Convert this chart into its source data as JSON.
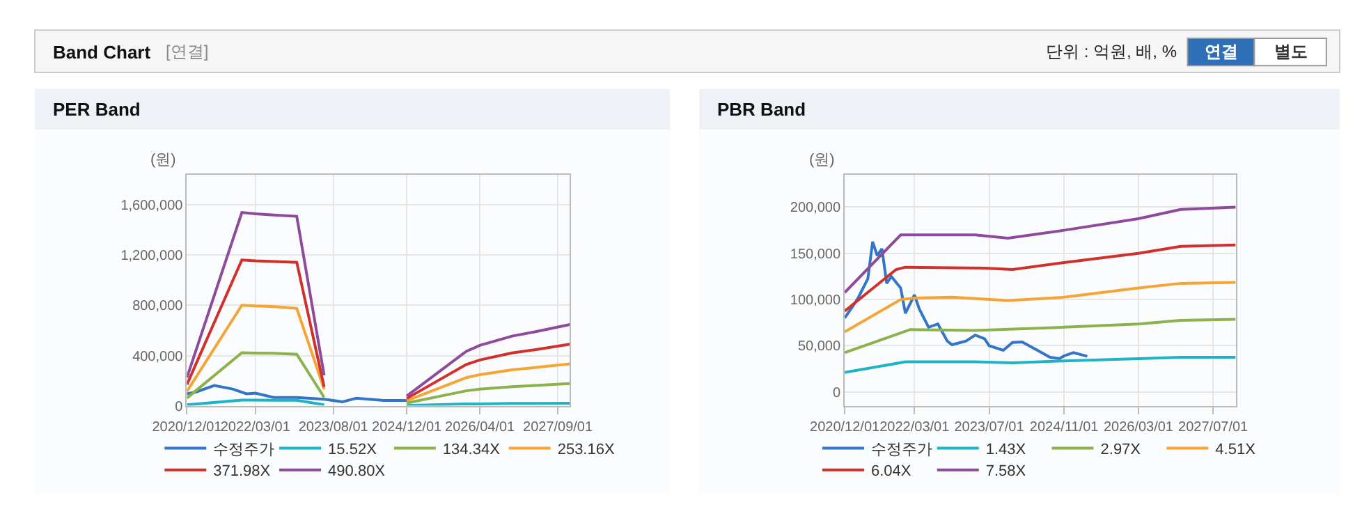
{
  "chart_data": [
    {
      "type": "line",
      "title": "PER Band",
      "ylabel": "(원)",
      "annotations": [
        "Band Chart",
        "[연결]",
        "단위 : 억원, 배, %",
        "연결",
        "별도"
      ],
      "xlim": [
        "2020-12-01",
        "2027-11-20"
      ],
      "xticks": [
        {
          "value": "2020-12-01",
          "label": "2020/12/01"
        },
        {
          "value": "2022-03-01",
          "label": "2022/03/01"
        },
        {
          "value": "2023-08-01",
          "label": "2023/08/01"
        },
        {
          "value": "2024-12-01",
          "label": "2024/12/01"
        },
        {
          "value": "2026-04-01",
          "label": "2026/04/01"
        },
        {
          "value": "2027-09-01",
          "label": "2027/09/01"
        }
      ],
      "ylim": [
        0,
        1840000
      ],
      "yticks": [
        0,
        {
          "value": 400000,
          "label": "400,000"
        },
        {
          "value": 800000,
          "label": "800,000"
        },
        {
          "value": 1200000,
          "label": "1,200,000"
        },
        {
          "value": 1600000,
          "label": "1,600,000"
        }
      ],
      "grid": true,
      "legend": "bottom",
      "marker": "none",
      "line_style": "solid",
      "series": [
        {
          "name": "수정주가",
          "color": "#3375c8",
          "x": [
            "2020-12-01",
            "2021-02-01",
            "2021-06-01",
            "2021-10-01",
            "2022-01-01",
            "2022-03-01",
            "2022-07-01",
            "2022-12-01",
            "2023-06-01",
            "2023-10-01",
            "2024-01-01",
            "2024-07-01",
            "2024-12-01"
          ],
          "values": [
            95000,
            110000,
            161000,
            133000,
            95000,
            100000,
            66000,
            66000,
            52000,
            31000,
            60000,
            42000,
            42000
          ]
        },
        {
          "name": "15.52X",
          "color": "#1fb3c8",
          "x": [
            "2020-12-01",
            "2021-12-01",
            "2022-03-01",
            "2022-07-01",
            "2022-12-01",
            "2023-06-01",
            "2024-01-01",
            "2024-12-01",
            "2026-01-01",
            "2026-04-01",
            "2026-11-01",
            "2027-04-01",
            "2027-11-20"
          ],
          "values": [
            7000,
            45000,
            45000,
            44000,
            44000,
            8000,
            null,
            2000,
            14000,
            15000,
            18000,
            19000,
            20000
          ]
        },
        {
          "name": "134.34X",
          "color": "#8cb24b",
          "x": [
            "2020-12-01",
            "2021-12-01",
            "2022-03-01",
            "2022-07-01",
            "2022-12-01",
            "2023-06-01",
            "2024-01-01",
            "2024-12-01",
            "2026-01-01",
            "2026-04-01",
            "2026-11-01",
            "2027-04-01",
            "2027-11-20"
          ],
          "values": [
            61000,
            422000,
            420000,
            418000,
            410000,
            67000,
            null,
            21000,
            119000,
            132000,
            152000,
            161000,
            177000
          ]
        },
        {
          "name": "253.16X",
          "color": "#f5a535",
          "x": [
            "2020-12-01",
            "2021-12-01",
            "2022-03-01",
            "2022-07-01",
            "2022-12-01",
            "2023-06-01",
            "2024-01-01",
            "2024-12-01",
            "2026-01-01",
            "2026-04-01",
            "2026-11-01",
            "2027-04-01",
            "2027-11-20"
          ],
          "values": [
            114000,
            801000,
            795000,
            790000,
            776000,
            132000,
            null,
            40000,
            224000,
            248000,
            286000,
            304000,
            334000
          ]
        },
        {
          "name": "371.98X",
          "color": "#d0312d",
          "x": [
            "2020-12-01",
            "2021-12-01",
            "2022-03-01",
            "2022-07-01",
            "2022-12-01",
            "2023-06-01",
            "2024-01-01",
            "2024-12-01",
            "2026-01-01",
            "2026-04-01",
            "2026-11-01",
            "2027-04-01",
            "2027-11-20"
          ],
          "values": [
            169000,
            1162000,
            1155000,
            1150000,
            1143000,
            150000,
            null,
            58000,
            329000,
            365000,
            421000,
            446000,
            490000
          ]
        },
        {
          "name": "490.80X",
          "color": "#8e4b9c",
          "x": [
            "2020-12-01",
            "2021-12-01",
            "2022-03-01",
            "2022-07-01",
            "2022-12-01",
            "2023-06-01",
            "2024-01-01",
            "2024-12-01",
            "2026-01-01",
            "2026-04-01",
            "2026-11-01",
            "2027-04-01",
            "2027-11-20"
          ],
          "values": [
            224000,
            1540000,
            1530000,
            1520000,
            1510000,
            243000,
            null,
            77000,
            434000,
            481000,
            555000,
            589000,
            647000
          ]
        }
      ]
    },
    {
      "type": "line",
      "title": "PBR Band",
      "ylabel": "(원)",
      "xlim": [
        "2020-12-01",
        "2027-11-25"
      ],
      "xticks": [
        {
          "value": "2020-12-01",
          "label": "2020/12/01"
        },
        {
          "value": "2022-03-01",
          "label": "2022/03/01"
        },
        {
          "value": "2023-07-01",
          "label": "2023/07/01"
        },
        {
          "value": "2024-11-01",
          "label": "2024/11/01"
        },
        {
          "value": "2026-03-01",
          "label": "2026/03/01"
        },
        {
          "value": "2027-07-01",
          "label": "2027/07/01"
        }
      ],
      "ylim": [
        -15000,
        235000
      ],
      "yticks": [
        0,
        {
          "value": 50000,
          "label": "50,000"
        },
        {
          "value": 100000,
          "label": "100,000"
        },
        {
          "value": 150000,
          "label": "150,000"
        },
        {
          "value": 200000,
          "label": "200,000"
        }
      ],
      "grid": true,
      "legend": "bottom",
      "marker": "none",
      "line_style": "solid",
      "series": [
        {
          "name": "수정주가",
          "color": "#3375c8",
          "x": [
            "2020-12-01",
            "2021-02-01",
            "2021-03-01",
            "2021-05-01",
            "2021-06-01",
            "2021-07-01",
            "2021-08-01",
            "2021-09-01",
            "2021-10-01",
            "2021-12-01",
            "2022-01-01",
            "2022-03-01",
            "2022-04-01",
            "2022-06-01",
            "2022-08-01",
            "2022-10-01",
            "2022-11-01",
            "2023-02-01",
            "2023-04-01",
            "2023-06-01",
            "2023-07-01",
            "2023-10-01",
            "2023-12-01",
            "2024-02-01",
            "2024-05-01",
            "2024-08-01",
            "2024-10-01",
            "2024-11-01",
            "2025-01-01",
            "2025-04-01"
          ],
          "values": [
            80000,
            95000,
            102500,
            122500,
            162500,
            147500,
            155000,
            117500,
            125000,
            112500,
            85000,
            105000,
            90000,
            70000,
            73500,
            55000,
            51000,
            55000,
            61500,
            57500,
            50000,
            45000,
            53500,
            54000,
            46000,
            37500,
            36000,
            39000,
            42500,
            38500
          ]
        },
        {
          "name": "1.43X",
          "color": "#1fb3c8",
          "x": [
            "2020-12-01",
            "2022-01-01",
            "2023-04-01",
            "2023-12-01",
            "2024-11-01",
            "2026-03-01",
            "2026-12-01",
            "2027-11-25"
          ],
          "values": [
            21000,
            32500,
            32500,
            31500,
            33500,
            36000,
            37500,
            37500
          ]
        },
        {
          "name": "2.97X",
          "color": "#8cb24b",
          "x": [
            "2020-12-01",
            "2022-02-01",
            "2023-04-01",
            "2024-11-01",
            "2026-03-01",
            "2026-12-01",
            "2027-11-25"
          ],
          "values": [
            42500,
            67500,
            66500,
            70000,
            73500,
            77500,
            78500
          ]
        },
        {
          "name": "4.51X",
          "color": "#f5a535",
          "x": [
            "2020-12-01",
            "2021-12-01",
            "2022-03-01",
            "2022-11-01",
            "2023-11-01",
            "2024-11-01",
            "2026-03-01",
            "2026-12-01",
            "2027-11-25"
          ],
          "values": [
            65000,
            100000,
            101500,
            102500,
            99000,
            102500,
            112500,
            117500,
            118500
          ]
        },
        {
          "name": "6.04X",
          "color": "#d0312d",
          "x": [
            "2020-12-01",
            "2021-11-01",
            "2022-01-01",
            "2023-06-01",
            "2023-12-01",
            "2024-11-01",
            "2026-03-01",
            "2026-12-01",
            "2027-11-25"
          ],
          "values": [
            87500,
            132500,
            135000,
            134000,
            132500,
            140000,
            150000,
            157500,
            159000
          ]
        },
        {
          "name": "7.58X",
          "color": "#8e4b9c",
          "x": [
            "2020-12-01",
            "2021-12-01",
            "2023-04-01",
            "2023-11-01",
            "2024-11-01",
            "2026-03-01",
            "2026-12-01",
            "2027-11-25"
          ],
          "values": [
            107500,
            170000,
            170000,
            166500,
            175000,
            187500,
            197500,
            200000
          ]
        }
      ]
    }
  ]
}
